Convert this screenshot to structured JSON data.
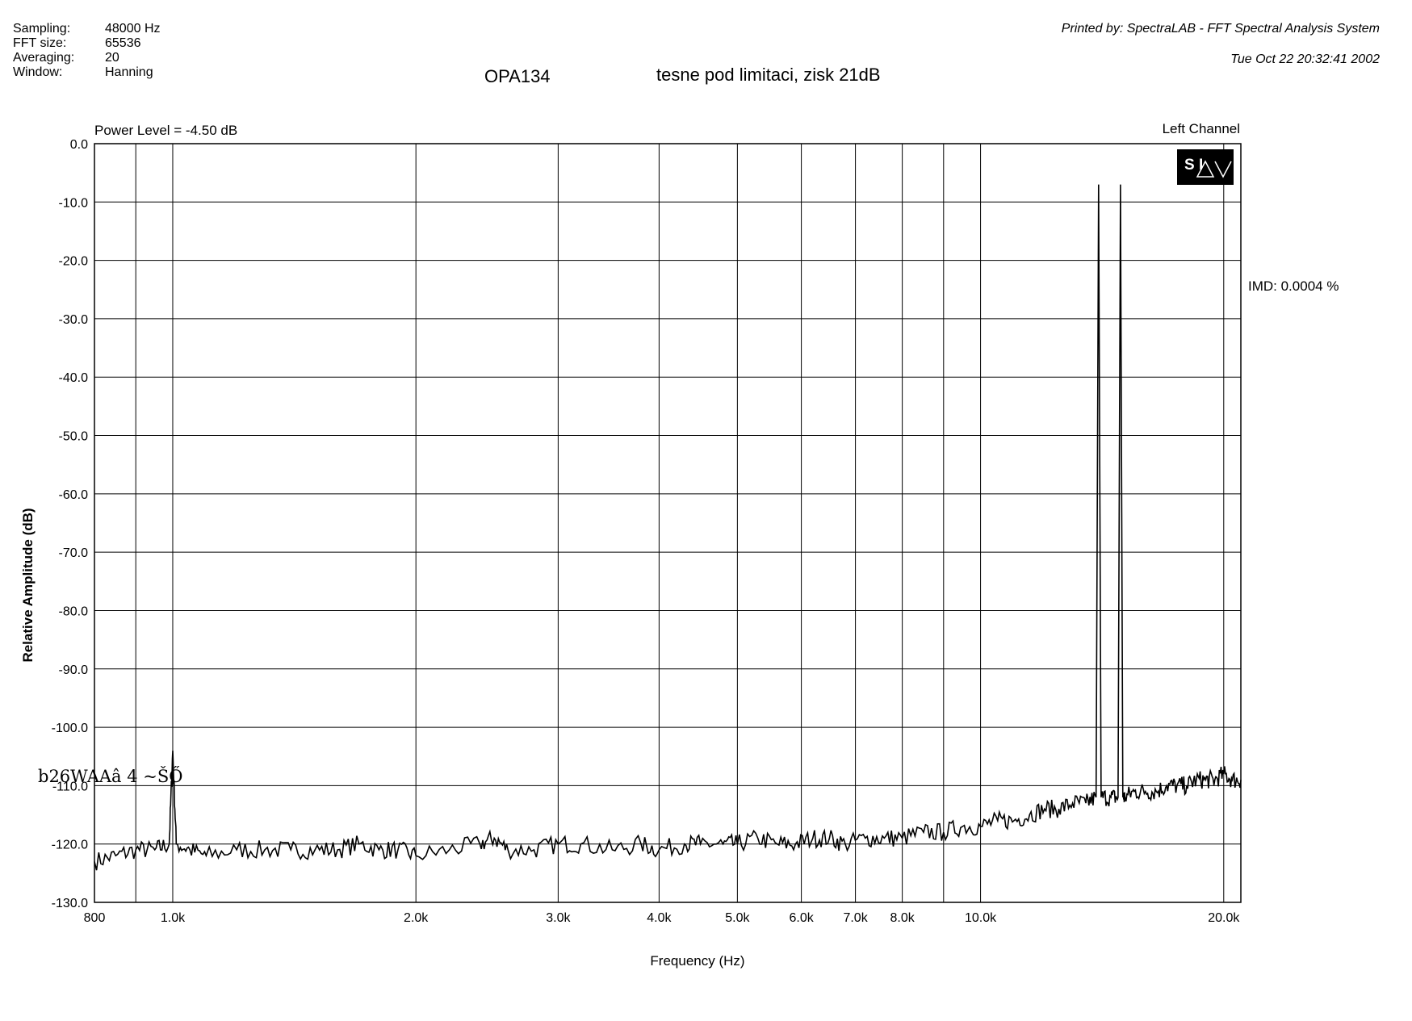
{
  "header": {
    "params": [
      {
        "label": "Sampling:",
        "value": "48000 Hz"
      },
      {
        "label": "FFT size:",
        "value": "65536"
      },
      {
        "label": "Averaging:",
        "value": "20"
      },
      {
        "label": "Window:",
        "value": "Hanning"
      }
    ],
    "printed_by": "Printed by: SpectraLAB - FFT Spectral Analysis System",
    "timestamp": "Tue Oct 22 20:32:41 2002",
    "device": "OPA134",
    "description": "tesne pod limitaci, zisk 21dB"
  },
  "plot": {
    "power_level": "Power Level = -4.50 dB",
    "channel": "Left Channel",
    "imd": "IMD: 0.0004 %",
    "logo_letters": "S I",
    "scan_artifact": "b26WAAâ 4 ~ŠŐ"
  },
  "chart_data": {
    "type": "line",
    "xscale": "log",
    "xlabel": "Frequency (Hz)",
    "ylabel": "Relative Amplitude (dB)",
    "xlim": [
      800,
      21000
    ],
    "ylim": [
      -130,
      0
    ],
    "xticks": [
      {
        "value": 800,
        "label": "800"
      },
      {
        "value": 1000,
        "label": "1.0k"
      },
      {
        "value": 2000,
        "label": "2.0k"
      },
      {
        "value": 3000,
        "label": "3.0k"
      },
      {
        "value": 4000,
        "label": "4.0k"
      },
      {
        "value": 5000,
        "label": "5.0k"
      },
      {
        "value": 6000,
        "label": "6.0k"
      },
      {
        "value": 7000,
        "label": "7.0k"
      },
      {
        "value": 8000,
        "label": "8.0k"
      },
      {
        "value": 10000,
        "label": "10.0k"
      },
      {
        "value": 20000,
        "label": "20.0k"
      }
    ],
    "xgrid": [
      900,
      1000,
      2000,
      3000,
      4000,
      5000,
      6000,
      7000,
      8000,
      9000,
      10000,
      20000
    ],
    "yticks": [
      {
        "value": 0,
        "label": "0.0"
      },
      {
        "value": -10,
        "label": "-10.0"
      },
      {
        "value": -20,
        "label": "-20.0"
      },
      {
        "value": -30,
        "label": "-30.0"
      },
      {
        "value": -40,
        "label": "-40.0"
      },
      {
        "value": -50,
        "label": "-50.0"
      },
      {
        "value": -60,
        "label": "-60.0"
      },
      {
        "value": -70,
        "label": "-70.0"
      },
      {
        "value": -80,
        "label": "-80.0"
      },
      {
        "value": -90,
        "label": "-90.0"
      },
      {
        "value": -100,
        "label": "-100.0"
      },
      {
        "value": -110,
        "label": "-110.0"
      },
      {
        "value": -120,
        "label": "-120.0"
      },
      {
        "value": -130,
        "label": "-130.0"
      }
    ],
    "grid": true,
    "series": [
      {
        "values_note_x": "Hz",
        "x": [
          800,
          850,
          900,
          950,
          990,
          1000,
          1010,
          1050,
          1100,
          1200,
          1300,
          1400,
          1500,
          1600,
          1700,
          1800,
          1900,
          2000,
          2200,
          2400,
          2500,
          2600,
          2800,
          3000,
          3200,
          3500,
          3800,
          4000,
          4300,
          4500,
          4800,
          5000,
          5300,
          5600,
          5900,
          6200,
          6500,
          6800,
          7200,
          7600,
          8000,
          8500,
          9000,
          9500,
          10000,
          10500,
          11000,
          11500,
          12000,
          12500,
          13000,
          13500,
          13900,
          14000,
          14100,
          14500,
          14800,
          14900,
          15000,
          15100,
          15500,
          16000,
          16500,
          17000,
          17500,
          18000,
          18500,
          19000,
          19500,
          20000,
          20500,
          21000
        ],
        "y": [
          -123,
          -122,
          -121,
          -121,
          -120,
          -104,
          -120,
          -121,
          -122,
          -121,
          -121,
          -121,
          -121,
          -121,
          -120,
          -121,
          -121,
          -122,
          -121,
          -120,
          -119,
          -121,
          -121,
          -120,
          -120,
          -121,
          -120,
          -121,
          -120,
          -120,
          -120,
          -120,
          -119,
          -120,
          -120,
          -119,
          -119,
          -120,
          -119,
          -119,
          -119,
          -118,
          -118,
          -117,
          -117,
          -116,
          -116,
          -115,
          -114,
          -114,
          -113,
          -113,
          -112,
          -7,
          -112,
          -112,
          -112,
          -7,
          -112,
          -112,
          -111,
          -111,
          -111,
          -110,
          -110,
          -110,
          -109,
          -109,
          -109,
          -108,
          -109,
          -109
        ]
      }
    ]
  }
}
